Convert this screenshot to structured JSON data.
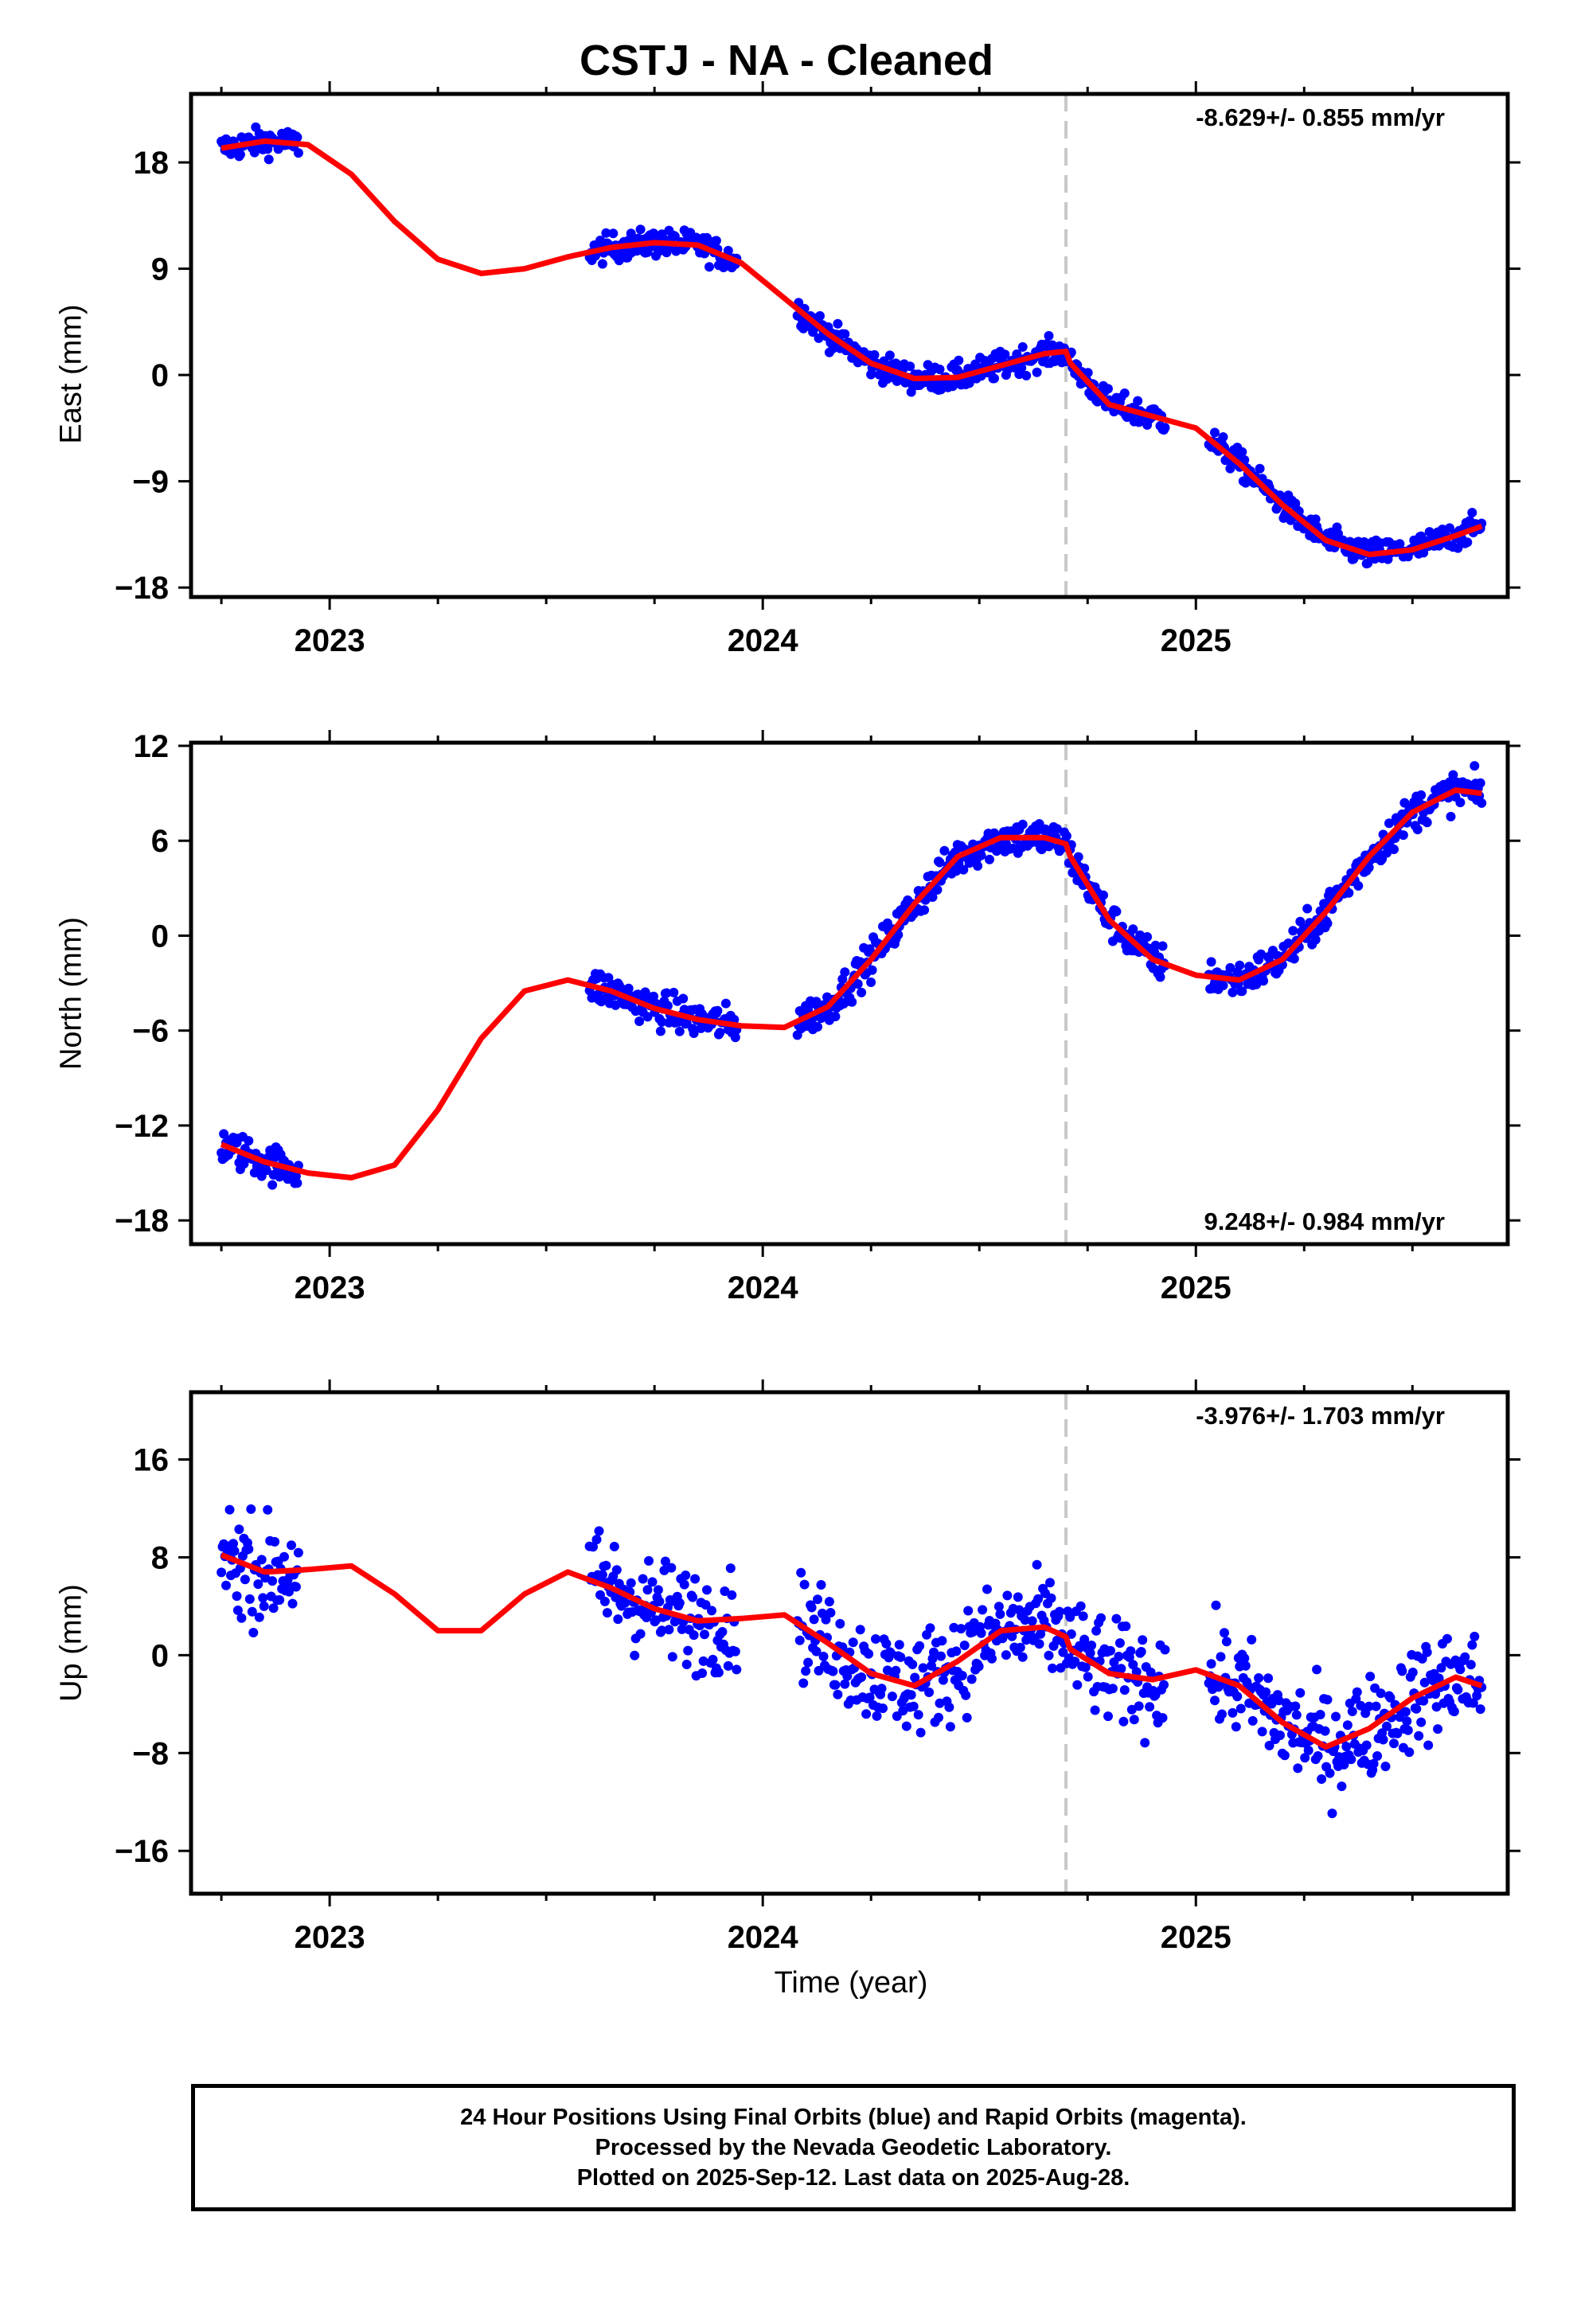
{
  "title": "CSTJ  - NA - Cleaned",
  "x_axis_label": "Time (year)",
  "footer": {
    "line1": "24 Hour Positions Using Final Orbits (blue) and Rapid Orbits (magenta).",
    "line2": "Processed by the Nevada Geodetic Laboratory.",
    "line3": "Plotted on 2025-Sep-12. Last data on 2025-Aug-28."
  },
  "colors": {
    "final_orbits": "#0000ff",
    "fit_curve": "#ff0000",
    "event_line": "#c8c8c8",
    "frame": "#000000"
  },
  "chart_data": [
    {
      "type": "scatter",
      "ylabel": "East (mm)",
      "rate_text": "-8.629+/- 0.855 mm/yr",
      "rate_position": "top-right",
      "xlim": [
        2022.68,
        2025.72
      ],
      "ylim": [
        -18.8,
        23.8
      ],
      "x_ticks": [
        2023,
        2024,
        2025
      ],
      "y_ticks": [
        18,
        9,
        0,
        -9,
        -18
      ],
      "y_tick_labels": [
        "18",
        "9",
        "0",
        "−9",
        "−18"
      ],
      "event_x": 2024.7,
      "scatter_noise": 1.1,
      "data_segments": [
        [
          2022.75,
          2022.93
        ],
        [
          2023.6,
          2023.94
        ],
        [
          2024.08,
          2024.93
        ],
        [
          2025.03,
          2025.66
        ]
      ],
      "fit_curve": {
        "x": [
          2022.75,
          2022.85,
          2022.95,
          2023.05,
          2023.15,
          2023.25,
          2023.35,
          2023.45,
          2023.55,
          2023.65,
          2023.75,
          2023.85,
          2023.95,
          2024.05,
          2024.15,
          2024.25,
          2024.35,
          2024.45,
          2024.55,
          2024.65,
          2024.7,
          2024.71,
          2024.8,
          2024.9,
          2025.0,
          2025.1,
          2025.2,
          2025.3,
          2025.4,
          2025.5,
          2025.6,
          2025.66
        ],
        "y": [
          19.2,
          19.8,
          19.5,
          17.0,
          13.0,
          9.8,
          8.6,
          9.0,
          10.0,
          10.8,
          11.2,
          11.0,
          9.5,
          6.5,
          3.5,
          1.0,
          -0.3,
          -0.2,
          0.8,
          1.8,
          2.0,
          1.0,
          -2.5,
          -3.5,
          -4.5,
          -7.5,
          -11.0,
          -14.0,
          -15.2,
          -14.8,
          -13.6,
          -12.8
        ]
      }
    },
    {
      "type": "scatter",
      "ylabel": "North (mm)",
      "rate_text": "9.248+/- 0.984 mm/yr",
      "rate_position": "bottom-right",
      "xlim": [
        2022.68,
        2025.72
      ],
      "ylim": [
        -19.5,
        12.2
      ],
      "x_ticks": [
        2023,
        2024,
        2025
      ],
      "y_ticks": [
        12,
        6,
        0,
        -6,
        -12,
        -18
      ],
      "y_tick_labels": [
        "12",
        "6",
        "0",
        "−6",
        "−12",
        "−18"
      ],
      "event_x": 2024.7,
      "scatter_noise": 1.1,
      "data_segments": [
        [
          2022.75,
          2022.93
        ],
        [
          2023.6,
          2023.94
        ],
        [
          2024.08,
          2024.93
        ],
        [
          2025.03,
          2025.66
        ]
      ],
      "fit_curve": {
        "x": [
          2022.75,
          2022.85,
          2022.95,
          2023.05,
          2023.15,
          2023.25,
          2023.35,
          2023.45,
          2023.55,
          2023.65,
          2023.75,
          2023.85,
          2023.95,
          2024.05,
          2024.15,
          2024.25,
          2024.35,
          2024.45,
          2024.55,
          2024.65,
          2024.7,
          2024.71,
          2024.8,
          2024.9,
          2025.0,
          2025.1,
          2025.2,
          2025.3,
          2025.4,
          2025.5,
          2025.6,
          2025.66
        ],
        "y": [
          -13.2,
          -14.3,
          -15.0,
          -15.3,
          -14.5,
          -11.0,
          -6.5,
          -3.5,
          -2.8,
          -3.5,
          -4.6,
          -5.3,
          -5.7,
          -5.8,
          -4.5,
          -1.5,
          2.0,
          5.0,
          6.2,
          6.2,
          5.8,
          5.0,
          1.0,
          -1.5,
          -2.5,
          -2.8,
          -1.5,
          1.5,
          5.0,
          7.8,
          9.2,
          9.0
        ]
      }
    },
    {
      "type": "scatter",
      "ylabel": "Up (mm)",
      "rate_text": "-3.976+/- 1.703 mm/yr",
      "rate_position": "top-right",
      "xlim": [
        2022.68,
        2025.72
      ],
      "ylim": [
        -19.5,
        21.5
      ],
      "x_ticks": [
        2023,
        2024,
        2025
      ],
      "y_ticks": [
        16,
        8,
        0,
        -8,
        -16
      ],
      "y_tick_labels": [
        "16",
        "8",
        "0",
        "−8",
        "−16"
      ],
      "event_x": 2024.7,
      "scatter_noise": 4.0,
      "data_segments": [
        [
          2022.75,
          2022.93
        ],
        [
          2023.6,
          2023.94
        ],
        [
          2024.08,
          2024.93
        ],
        [
          2025.03,
          2025.66
        ]
      ],
      "fit_curve": {
        "x": [
          2022.75,
          2022.85,
          2022.95,
          2023.05,
          2023.15,
          2023.25,
          2023.35,
          2023.45,
          2023.55,
          2023.65,
          2023.75,
          2023.85,
          2023.95,
          2024.05,
          2024.15,
          2024.25,
          2024.35,
          2024.45,
          2024.55,
          2024.65,
          2024.7,
          2024.71,
          2024.8,
          2024.9,
          2025.0,
          2025.1,
          2025.2,
          2025.3,
          2025.4,
          2025.5,
          2025.6,
          2025.66
        ],
        "y": [
          8.2,
          6.8,
          7.0,
          7.3,
          5.0,
          2.0,
          2.0,
          5.0,
          6.8,
          5.5,
          3.8,
          2.8,
          3.0,
          3.3,
          1.0,
          -1.5,
          -2.5,
          -0.5,
          2.0,
          2.3,
          1.5,
          0.5,
          -1.5,
          -2.0,
          -1.2,
          -2.5,
          -5.5,
          -7.5,
          -6.0,
          -3.5,
          -1.8,
          -2.5
        ]
      }
    }
  ]
}
